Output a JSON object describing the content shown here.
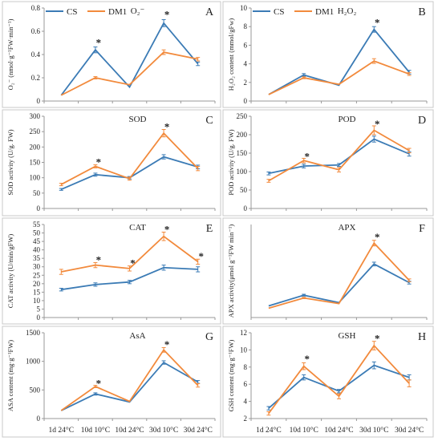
{
  "colors": {
    "CS": "#3b7bb5",
    "DM1": "#f28a3c",
    "border": "#c8c8c8",
    "axis": "#999999"
  },
  "legend": {
    "cs": "CS",
    "dm1": "DM1"
  },
  "x_categories": [
    "1d 24°C",
    "10d 10°C",
    "10d 24°C",
    "30d 10°C",
    "30d 24°C"
  ],
  "chart_data": [
    {
      "type": "line",
      "letter": "A",
      "title": "O₂⁻",
      "ylabel": "O₂⁻ (nmol·g⁻¹FW·min⁻¹)",
      "ylim": [
        0,
        0.8
      ],
      "yticks": [
        "0",
        "0.2",
        "0.4",
        "0.6",
        "0.8"
      ],
      "categories": [
        "1d 24°C",
        "10d 10°C",
        "10d 24°C",
        "30d 10°C",
        "30d 24°C"
      ],
      "series": [
        {
          "name": "CS",
          "values": [
            0.05,
            0.44,
            0.12,
            0.67,
            0.32
          ],
          "errors": [
            0,
            0.025,
            0,
            0.03,
            0.015
          ]
        },
        {
          "name": "DM1",
          "values": [
            0.05,
            0.2,
            0.14,
            0.42,
            0.36
          ],
          "errors": [
            0,
            0.01,
            0,
            0.02,
            0.015
          ]
        }
      ],
      "significance": [
        {
          "index": 1,
          "mark": "*",
          "value": 0.5
        },
        {
          "index": 3,
          "mark": "*",
          "value": 0.74
        }
      ]
    },
    {
      "type": "line",
      "letter": "B",
      "title": "H₂O₂",
      "ylabel": "H₂O₂ content (mmol/gFw)",
      "ylim": [
        0,
        10
      ],
      "yticks": [
        "0",
        "2",
        "4",
        "6",
        "8",
        "10"
      ],
      "categories": [
        "1d 24°C",
        "10d 10°C",
        "10d 24°C",
        "30d 10°C",
        "30d 24°C"
      ],
      "series": [
        {
          "name": "CS",
          "values": [
            0.7,
            2.8,
            1.7,
            7.7,
            3.1
          ],
          "errors": [
            0,
            0.15,
            0,
            0.3,
            0.2
          ]
        },
        {
          "name": "DM1",
          "values": [
            0.7,
            2.5,
            1.8,
            4.3,
            2.9
          ],
          "errors": [
            0,
            0.1,
            0,
            0.25,
            0.15
          ]
        }
      ],
      "significance": [
        {
          "index": 3,
          "mark": "*",
          "value": 8.4
        }
      ]
    },
    {
      "type": "line",
      "letter": "C",
      "title": "SOD",
      "ylabel": "SOD activity (U/g. FW)",
      "ylim": [
        0,
        300
      ],
      "yticks": [
        "0",
        "50",
        "100",
        "150",
        "200",
        "250",
        "300"
      ],
      "categories": [
        "1d 24°C",
        "10d 10°C",
        "10d 24°C",
        "30d 10°C",
        "30d 24°C"
      ],
      "series": [
        {
          "name": "CS",
          "values": [
            62,
            110,
            100,
            168,
            135
          ],
          "errors": [
            3,
            5,
            4,
            7,
            6
          ]
        },
        {
          "name": "DM1",
          "values": [
            78,
            137,
            97,
            245,
            130
          ],
          "errors": [
            4,
            5,
            5,
            12,
            7
          ]
        }
      ],
      "significance": [
        {
          "index": 1,
          "mark": "*",
          "value": 150
        },
        {
          "index": 3,
          "mark": "*",
          "value": 265
        }
      ]
    },
    {
      "type": "line",
      "letter": "D",
      "title": "POD",
      "ylabel": "POD activity (U/g. FW)",
      "ylim": [
        0,
        250
      ],
      "yticks": [
        "0",
        "50",
        "100",
        "150",
        "200",
        "250"
      ],
      "categories": [
        "1d 24°C",
        "10d 10°C",
        "10d 24°C",
        "30d 10°C",
        "30d 24°C"
      ],
      "series": [
        {
          "name": "CS",
          "values": [
            95,
            115,
            118,
            188,
            148
          ],
          "errors": [
            4,
            5,
            4,
            8,
            6
          ]
        },
        {
          "name": "DM1",
          "values": [
            75,
            130,
            105,
            212,
            157
          ],
          "errors": [
            4,
            6,
            6,
            12,
            6
          ]
        }
      ],
      "significance": [
        {
          "index": 1,
          "mark": "*",
          "value": 140
        },
        {
          "index": 3,
          "mark": "*",
          "value": 228
        }
      ]
    },
    {
      "type": "line",
      "letter": "E",
      "title": "CAT",
      "ylabel": "CAT activity (U/min/gFW)",
      "ylim": [
        0,
        55
      ],
      "yticks": [
        "0",
        "5",
        "10",
        "15",
        "20",
        "25",
        "30",
        "35",
        "40",
        "45",
        "50",
        "55"
      ],
      "categories": [
        "1d 24°C",
        "10d 10°C",
        "10d 24°C",
        "30d 10°C",
        "30d 24°C"
      ],
      "series": [
        {
          "name": "CS",
          "values": [
            16.5,
            19.5,
            21,
            29.5,
            28.5
          ],
          "errors": [
            0.8,
            1,
            1,
            1.5,
            1.5
          ]
        },
        {
          "name": "DM1",
          "values": [
            27,
            31,
            29,
            48,
            33
          ],
          "errors": [
            1.5,
            1.5,
            1.5,
            2.5,
            1.5
          ]
        }
      ],
      "significance": [
        {
          "index": 1,
          "mark": "*",
          "value": 34
        },
        {
          "index": 2,
          "mark": "*",
          "value": 32
        },
        {
          "index": 3,
          "mark": "*",
          "value": 52
        },
        {
          "index": 4,
          "mark": "*",
          "value": 36
        }
      ]
    },
    {
      "type": "line",
      "letter": "F",
      "title": "APX",
      "ylabel": "APX activity(μmol g⁻¹FW min⁻¹)",
      "ylim": [
        0,
        2000
      ],
      "yticks": [],
      "categories": [
        "1d 24°C",
        "10d 10°C",
        "10d 24°C",
        "30d 10°C",
        "30d 24°C"
      ],
      "series": [
        {
          "name": "CS",
          "values": [
            250,
            480,
            320,
            1150,
            750
          ],
          "errors": [
            0,
            20,
            0,
            40,
            30
          ]
        },
        {
          "name": "DM1",
          "values": [
            200,
            420,
            300,
            1600,
            800
          ],
          "errors": [
            0,
            15,
            0,
            60,
            30
          ]
        }
      ],
      "significance": [
        {
          "index": 3,
          "mark": "*",
          "value": 1720
        }
      ]
    },
    {
      "type": "line",
      "letter": "G",
      "title": "AsA",
      "ylabel": "ASA content (mg·g⁻¹FW)",
      "ylim": [
        0,
        1500
      ],
      "yticks": [
        "0",
        "500",
        "1000",
        "1500"
      ],
      "categories": [
        "1d 24°C",
        "10d 10°C",
        "10d 24°C",
        "30d 10°C",
        "30d 24°C"
      ],
      "series": [
        {
          "name": "CS",
          "values": [
            140,
            430,
            290,
            980,
            640
          ],
          "errors": [
            0,
            20,
            0,
            30,
            25
          ]
        },
        {
          "name": "DM1",
          "values": [
            140,
            560,
            300,
            1200,
            580
          ],
          "errors": [
            0,
            20,
            0,
            40,
            30
          ]
        }
      ],
      "significance": [
        {
          "index": 1,
          "mark": "*",
          "value": 610
        },
        {
          "index": 3,
          "mark": "*",
          "value": 1290
        }
      ]
    },
    {
      "type": "line",
      "letter": "H",
      "title": "GSH",
      "ylabel": "GSH content (mg·g⁻¹FW)",
      "ylim": [
        2,
        12
      ],
      "yticks": [
        "2",
        "4",
        "6",
        "8",
        "10",
        "12"
      ],
      "categories": [
        "1d 24°C",
        "10d 10°C",
        "10d 24°C",
        "30d 10°C",
        "30d 24°C"
      ],
      "series": [
        {
          "name": "CS",
          "values": [
            3.2,
            6.8,
            5.2,
            8.2,
            6.8
          ],
          "errors": [
            0.2,
            0.3,
            0.2,
            0.4,
            0.3
          ]
        },
        {
          "name": "DM1",
          "values": [
            2.6,
            8.1,
            4.6,
            10.5,
            6.1
          ],
          "errors": [
            0.2,
            0.4,
            0.3,
            0.5,
            0.4
          ]
        }
      ],
      "significance": [
        {
          "index": 1,
          "mark": "*",
          "value": 8.9
        },
        {
          "index": 3,
          "mark": "*",
          "value": 11.3
        }
      ]
    }
  ]
}
